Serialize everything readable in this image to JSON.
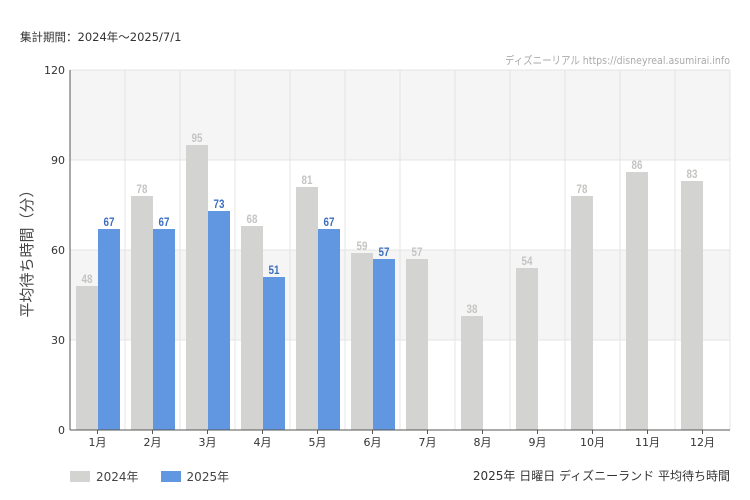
{
  "header": {
    "period": "集計期間：2024年～2025/7/1",
    "source": "ディズニーリアル https://disneyreal.asumirai.info"
  },
  "footer": {
    "chart_caption": "2025年 日曜日 ディズニーランド 平均待ち時間"
  },
  "colors": {
    "series_2024": "#d3d3d1",
    "series_2024_label": "#c4c4c2",
    "series_2025": "#6197e0",
    "series_2025_label": "#3d6fc0",
    "band": "#f5f5f5",
    "grid": "#e4e4e4",
    "axis": "#555555"
  },
  "chart_data": {
    "type": "bar",
    "title": "",
    "ylabel": "平均待ち時間（分）",
    "xlabel": "",
    "ylim": [
      0,
      120
    ],
    "yticks": [
      0,
      30,
      60,
      90,
      120
    ],
    "grid": true,
    "legend_position": "bottom-left",
    "categories": [
      "1月",
      "2月",
      "3月",
      "4月",
      "5月",
      "6月",
      "7月",
      "8月",
      "9月",
      "10月",
      "11月",
      "12月"
    ],
    "series": [
      {
        "name": "2024年",
        "values": [
          48,
          78,
          95,
          68,
          81,
          59,
          57,
          38,
          54,
          78,
          86,
          83
        ]
      },
      {
        "name": "2025年",
        "values": [
          67,
          67,
          73,
          51,
          67,
          57,
          null,
          null,
          null,
          null,
          null,
          null
        ]
      }
    ]
  }
}
